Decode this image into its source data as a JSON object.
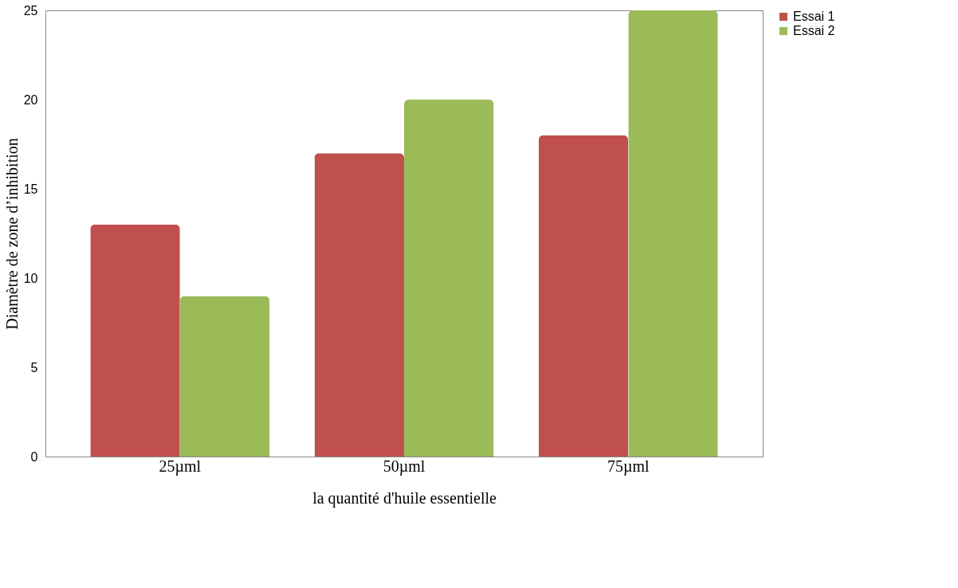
{
  "chart_data": {
    "type": "bar",
    "categories": [
      "25µml",
      "50µml",
      "75µml"
    ],
    "series": [
      {
        "name": "Essai 1",
        "color": "#c0504d",
        "values": [
          13,
          17,
          18
        ]
      },
      {
        "name": "Essai 2",
        "color": "#9bbb59",
        "values": [
          9,
          20,
          25
        ]
      }
    ],
    "xlabel": "la quantité d'huile essentielle",
    "ylabel": "Diamètre de zone d’inhibition",
    "ylim": [
      0,
      25
    ],
    "yticks": [
      0,
      5,
      10,
      15,
      20,
      25
    ],
    "grid": false,
    "legend": "right"
  }
}
